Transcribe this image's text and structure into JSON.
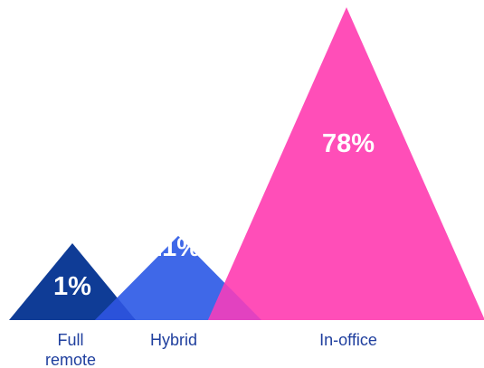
{
  "chart_data": {
    "type": "bar",
    "mark": "triangle",
    "categories": [
      "Full remote",
      "Hybrid",
      "In-office"
    ],
    "values": [
      1,
      21,
      78
    ],
    "value_labels": [
      "1%",
      "21%",
      "78%"
    ],
    "category_labels": [
      [
        "Full",
        "remote"
      ],
      [
        "Hybrid"
      ],
      [
        "In-office"
      ]
    ],
    "colors": [
      "#0f3c96",
      "#3f68e8",
      "#ff4eb8"
    ],
    "overlap_colors": [
      "#2b52da",
      "#e242c0"
    ],
    "label_color": "#1f3f9e",
    "title": "",
    "xlabel": "",
    "ylabel": "",
    "grid": false,
    "legend": "none"
  }
}
